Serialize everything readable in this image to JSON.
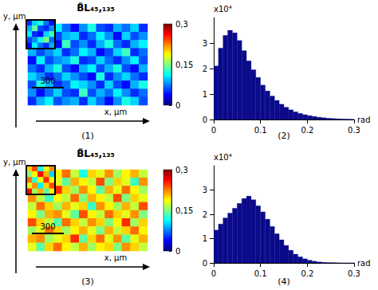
{
  "chart_data": [
    {
      "type": "heatmap",
      "title": "B̃L₄₅,₁₃₅",
      "caption": "(1)",
      "xlabel": "x, µm",
      "ylabel": "y, µm",
      "scale_bar_label": "300",
      "tick_labels": false,
      "colorbar": {
        "lim": [
          0,
          0.3
        ],
        "ticks": [
          {
            "value": 0,
            "label": "0"
          },
          {
            "value": 0.15,
            "label": "0,15"
          },
          {
            "value": 0.3,
            "label": "0,3"
          }
        ]
      },
      "cells": [
        [
          0.06,
          0.09,
          0.05,
          0.11,
          0.07,
          0.04,
          0.08,
          0.12,
          0.06,
          0.05,
          0.09,
          0.07,
          0.1,
          0.05
        ],
        [
          0.08,
          0.05,
          0.12,
          0.06,
          0.09,
          0.1,
          0.05,
          0.07,
          0.11,
          0.08,
          0.04,
          0.1,
          0.06,
          0.08
        ],
        [
          0.05,
          0.1,
          0.07,
          0.04,
          0.13,
          0.06,
          0.08,
          0.05,
          0.09,
          0.12,
          0.07,
          0.05,
          0.09,
          0.11
        ],
        [
          0.09,
          0.06,
          0.08,
          0.1,
          0.05,
          0.07,
          0.11,
          0.09,
          0.04,
          0.06,
          0.1,
          0.13,
          0.05,
          0.07
        ],
        [
          0.04,
          0.11,
          0.06,
          0.08,
          0.09,
          0.12,
          0.05,
          0.06,
          0.1,
          0.07,
          0.05,
          0.08,
          0.11,
          0.06
        ],
        [
          0.07,
          0.05,
          0.09,
          0.12,
          0.06,
          0.04,
          0.09,
          0.11,
          0.06,
          0.09,
          0.12,
          0.06,
          0.04,
          0.09
        ],
        [
          0.1,
          0.08,
          0.05,
          0.07,
          0.1,
          0.08,
          0.06,
          0.04,
          0.12,
          0.05,
          0.08,
          0.1,
          0.07,
          0.05
        ],
        [
          0.06,
          0.12,
          0.09,
          0.05,
          0.07,
          0.11,
          0.1,
          0.08,
          0.05,
          0.1,
          0.06,
          0.04,
          0.09,
          0.12
        ],
        [
          0.08,
          0.04,
          0.07,
          0.1,
          0.06,
          0.05,
          0.13,
          0.06,
          0.09,
          0.07,
          0.11,
          0.08,
          0.05,
          0.07
        ],
        [
          0.05,
          0.09,
          0.11,
          0.06,
          0.08,
          0.09,
          0.05,
          0.1,
          0.07,
          0.04,
          0.08,
          0.12,
          0.1,
          0.06
        ]
      ],
      "inset_cells": [
        [
          0.05,
          0.1,
          0.12,
          0.07,
          0.04
        ],
        [
          0.09,
          0.14,
          0.06,
          0.05,
          0.08
        ],
        [
          0.11,
          0.05,
          0.04,
          0.1,
          0.13
        ],
        [
          0.06,
          0.08,
          0.12,
          0.15,
          0.07
        ],
        [
          0.04,
          0.11,
          0.07,
          0.05,
          0.09
        ]
      ]
    },
    {
      "type": "histogram",
      "caption": "(2)",
      "xlabel": "rad",
      "ylabel": "x10⁴",
      "color": "#0a0a8a",
      "bins": [
        0,
        0.01,
        0.02,
        0.03,
        0.04,
        0.05,
        0.06,
        0.07,
        0.08,
        0.09,
        0.1,
        0.11,
        0.12,
        0.13,
        0.14,
        0.15,
        0.16,
        0.17,
        0.18,
        0.19,
        0.2,
        0.21,
        0.22,
        0.23,
        0.24,
        0.25,
        0.26,
        0.27,
        0.28,
        0.29,
        0.3
      ],
      "counts": [
        2.1,
        2.8,
        3.3,
        3.5,
        3.4,
        3.1,
        2.7,
        2.3,
        1.95,
        1.65,
        1.35,
        1.12,
        0.92,
        0.75,
        0.6,
        0.48,
        0.38,
        0.3,
        0.24,
        0.19,
        0.15,
        0.12,
        0.09,
        0.07,
        0.05,
        0.04,
        0.03,
        0.02,
        0.015,
        0.01
      ],
      "xlim": [
        0,
        0.3
      ],
      "xticks": [
        0,
        0.1,
        0.2,
        0.3
      ],
      "ylim": [
        0,
        4
      ],
      "yticks": [
        0,
        1,
        2,
        3
      ]
    },
    {
      "type": "heatmap",
      "title": "B̃L₄₅,₁₃₅",
      "caption": "(3)",
      "xlabel": "x, µm",
      "ylabel": "y, µm",
      "scale_bar_label": "300",
      "tick_labels": false,
      "colorbar": {
        "lim": [
          0,
          0.3
        ],
        "ticks": [
          {
            "value": 0,
            "label": "0"
          },
          {
            "value": 0.15,
            "label": "0,15"
          },
          {
            "value": 0.3,
            "label": "0,3"
          }
        ]
      },
      "cells": [
        [
          0.18,
          0.21,
          0.15,
          0.19,
          0.23,
          0.17,
          0.12,
          0.2,
          0.18,
          0.22,
          0.16,
          0.19,
          0.21,
          0.17
        ],
        [
          0.2,
          0.16,
          0.22,
          0.18,
          0.14,
          0.21,
          0.19,
          0.17,
          0.24,
          0.15,
          0.2,
          0.18,
          0.13,
          0.22
        ],
        [
          0.15,
          0.19,
          0.18,
          0.25,
          0.2,
          0.16,
          0.22,
          0.19,
          0.14,
          0.21,
          0.18,
          0.23,
          0.19,
          0.16
        ],
        [
          0.22,
          0.17,
          0.13,
          0.19,
          0.17,
          0.23,
          0.15,
          0.21,
          0.19,
          0.17,
          0.24,
          0.15,
          0.2,
          0.18
        ],
        [
          0.17,
          0.23,
          0.2,
          0.16,
          0.21,
          0.18,
          0.2,
          0.13,
          0.22,
          0.19,
          0.16,
          0.21,
          0.17,
          0.24
        ],
        [
          0.19,
          0.15,
          0.21,
          0.22,
          0.18,
          0.14,
          0.24,
          0.19,
          0.17,
          0.23,
          0.2,
          0.18,
          0.22,
          0.15
        ],
        [
          0.24,
          0.2,
          0.17,
          0.14,
          0.23,
          0.2,
          0.17,
          0.22,
          0.2,
          0.15,
          0.19,
          0.25,
          0.16,
          0.2
        ],
        [
          0.16,
          0.18,
          0.23,
          0.2,
          0.16,
          0.19,
          0.21,
          0.18,
          0.15,
          0.21,
          0.17,
          0.2,
          0.23,
          0.19
        ],
        [
          0.21,
          0.22,
          0.16,
          0.18,
          0.2,
          0.25,
          0.14,
          0.2,
          0.23,
          0.18,
          0.22,
          0.14,
          0.18,
          0.21
        ],
        [
          0.18,
          0.14,
          0.2,
          0.23,
          0.19,
          0.17,
          0.21,
          0.16,
          0.19,
          0.2,
          0.15,
          0.22,
          0.2,
          0.17
        ]
      ],
      "inset_cells": [
        [
          0.2,
          0.24,
          0.12,
          0.18,
          0.22
        ],
        [
          0.15,
          0.19,
          0.26,
          0.21,
          0.1
        ],
        [
          0.23,
          0.13,
          0.18,
          0.25,
          0.19
        ],
        [
          0.18,
          0.22,
          0.11,
          0.2,
          0.24
        ],
        [
          0.26,
          0.16,
          0.21,
          0.14,
          0.19
        ]
      ]
    },
    {
      "type": "histogram",
      "caption": "(4)",
      "xlabel": "rad",
      "ylabel": "x10⁴",
      "color": "#0a0a8a",
      "bins": [
        0,
        0.01,
        0.02,
        0.03,
        0.04,
        0.05,
        0.06,
        0.07,
        0.08,
        0.09,
        0.1,
        0.11,
        0.12,
        0.13,
        0.14,
        0.15,
        0.16,
        0.17,
        0.18,
        0.19,
        0.2,
        0.21,
        0.22,
        0.23,
        0.24,
        0.25,
        0.26,
        0.27,
        0.28,
        0.29,
        0.3
      ],
      "counts": [
        1.35,
        1.6,
        1.85,
        2.05,
        2.25,
        2.45,
        2.65,
        2.75,
        2.6,
        2.35,
        2.1,
        1.8,
        1.5,
        1.2,
        0.95,
        0.72,
        0.52,
        0.36,
        0.25,
        0.17,
        0.11,
        0.07,
        0.04,
        0.025,
        0.015,
        0.01,
        0.005,
        0,
        0,
        0
      ],
      "xlim": [
        0,
        0.3
      ],
      "xticks": [
        0,
        0.1,
        0.2,
        0.3
      ],
      "ylim": [
        0,
        4
      ],
      "yticks": [
        0,
        1,
        2,
        3
      ]
    }
  ]
}
